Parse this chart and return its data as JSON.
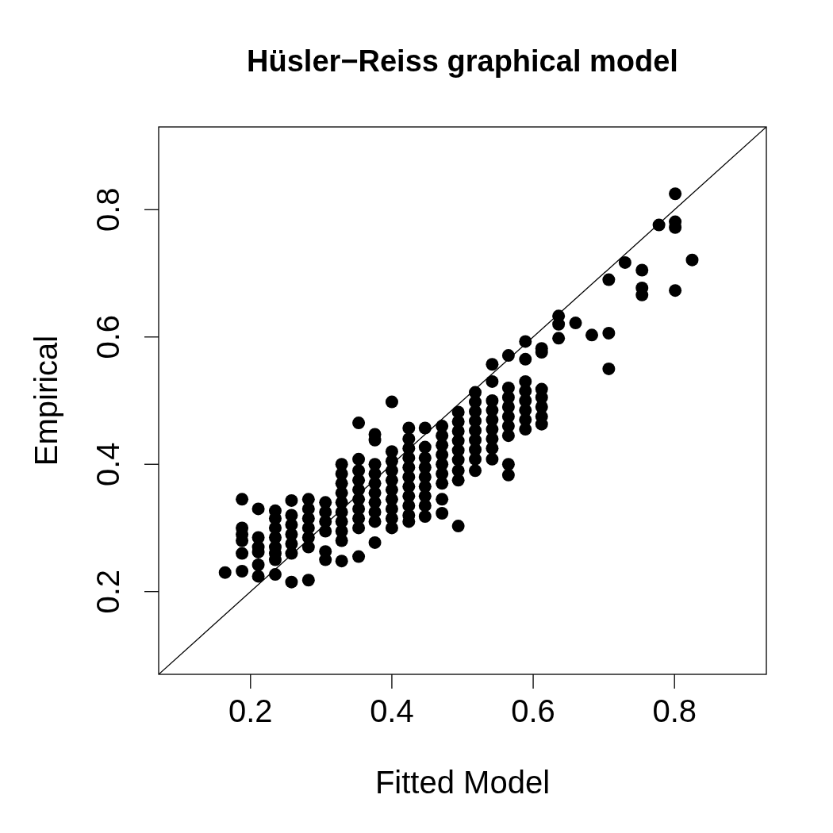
{
  "chart_data": {
    "type": "scatter",
    "title": "Hüsler−Reiss graphical model",
    "xlabel": "Fitted Model",
    "ylabel": "Empirical",
    "xlim": [
      0.07,
      0.93
    ],
    "ylim": [
      0.07,
      0.93
    ],
    "xticks": [
      0.2,
      0.4,
      0.6,
      0.8
    ],
    "yticks": [
      0.2,
      0.4,
      0.6,
      0.8
    ],
    "grid": false,
    "series": [
      {
        "color": "#000000",
        "marker": "circle",
        "x": [
          0.164,
          0.188,
          0.188,
          0.188,
          0.188,
          0.188,
          0.188,
          0.211,
          0.211,
          0.211,
          0.211,
          0.211,
          0.211,
          0.235,
          0.235,
          0.235,
          0.235,
          0.235,
          0.235,
          0.235,
          0.235,
          0.258,
          0.258,
          0.258,
          0.258,
          0.258,
          0.258,
          0.258,
          0.282,
          0.282,
          0.282,
          0.282,
          0.282,
          0.282,
          0.282,
          0.306,
          0.306,
          0.306,
          0.306,
          0.306,
          0.306,
          0.329,
          0.329,
          0.329,
          0.329,
          0.329,
          0.329,
          0.329,
          0.329,
          0.329,
          0.329,
          0.353,
          0.353,
          0.353,
          0.353,
          0.353,
          0.353,
          0.353,
          0.353,
          0.353,
          0.353,
          0.376,
          0.376,
          0.376,
          0.376,
          0.376,
          0.376,
          0.376,
          0.376,
          0.376,
          0.376,
          0.4,
          0.4,
          0.4,
          0.4,
          0.4,
          0.4,
          0.4,
          0.4,
          0.4,
          0.4,
          0.424,
          0.424,
          0.424,
          0.424,
          0.424,
          0.424,
          0.424,
          0.424,
          0.424,
          0.424,
          0.424,
          0.447,
          0.447,
          0.447,
          0.447,
          0.447,
          0.447,
          0.447,
          0.447,
          0.447,
          0.471,
          0.471,
          0.471,
          0.471,
          0.471,
          0.471,
          0.471,
          0.471,
          0.471,
          0.494,
          0.494,
          0.494,
          0.494,
          0.494,
          0.494,
          0.494,
          0.494,
          0.494,
          0.518,
          0.518,
          0.518,
          0.518,
          0.518,
          0.518,
          0.518,
          0.518,
          0.518,
          0.542,
          0.542,
          0.542,
          0.542,
          0.542,
          0.542,
          0.542,
          0.542,
          0.542,
          0.565,
          0.565,
          0.565,
          0.565,
          0.565,
          0.565,
          0.565,
          0.565,
          0.565,
          0.589,
          0.589,
          0.589,
          0.589,
          0.589,
          0.589,
          0.589,
          0.589,
          0.612,
          0.612,
          0.612,
          0.612,
          0.612,
          0.612,
          0.612,
          0.636,
          0.636,
          0.636,
          0.66,
          0.683,
          0.707,
          0.707,
          0.707,
          0.73,
          0.754,
          0.754,
          0.754,
          0.778,
          0.801,
          0.801,
          0.801,
          0.801,
          0.825
        ],
        "values": [
          0.23,
          0.345,
          0.3,
          0.29,
          0.28,
          0.26,
          0.232,
          0.33,
          0.285,
          0.27,
          0.262,
          0.242,
          0.224,
          0.327,
          0.315,
          0.3,
          0.285,
          0.27,
          0.26,
          0.25,
          0.227,
          0.343,
          0.32,
          0.305,
          0.29,
          0.275,
          0.26,
          0.215,
          0.345,
          0.33,
          0.315,
          0.3,
          0.285,
          0.27,
          0.218,
          0.34,
          0.325,
          0.31,
          0.295,
          0.263,
          0.25,
          0.4,
          0.385,
          0.37,
          0.355,
          0.34,
          0.325,
          0.31,
          0.295,
          0.28,
          0.248,
          0.465,
          0.408,
          0.39,
          0.375,
          0.36,
          0.345,
          0.33,
          0.315,
          0.3,
          0.255,
          0.447,
          0.438,
          0.4,
          0.385,
          0.37,
          0.355,
          0.34,
          0.325,
          0.31,
          0.277,
          0.498,
          0.42,
          0.405,
          0.39,
          0.375,
          0.36,
          0.345,
          0.33,
          0.315,
          0.3,
          0.457,
          0.44,
          0.425,
          0.41,
          0.395,
          0.38,
          0.365,
          0.35,
          0.335,
          0.32,
          0.31,
          0.457,
          0.427,
          0.41,
          0.395,
          0.38,
          0.365,
          0.35,
          0.335,
          0.318,
          0.46,
          0.445,
          0.43,
          0.415,
          0.4,
          0.385,
          0.37,
          0.345,
          0.323,
          0.482,
          0.467,
          0.452,
          0.437,
          0.422,
          0.407,
          0.39,
          0.375,
          0.303,
          0.513,
          0.498,
          0.483,
          0.468,
          0.453,
          0.438,
          0.423,
          0.408,
          0.39,
          0.557,
          0.53,
          0.5,
          0.485,
          0.47,
          0.455,
          0.44,
          0.425,
          0.408,
          0.571,
          0.52,
          0.505,
          0.49,
          0.475,
          0.46,
          0.445,
          0.4,
          0.383,
          0.593,
          0.565,
          0.53,
          0.515,
          0.5,
          0.485,
          0.47,
          0.455,
          0.582,
          0.576,
          0.518,
          0.505,
          0.49,
          0.475,
          0.463,
          0.633,
          0.62,
          0.598,
          0.622,
          0.603,
          0.69,
          0.606,
          0.55,
          0.717,
          0.705,
          0.677,
          0.666,
          0.776,
          0.825,
          0.781,
          0.772,
          0.673,
          0.721
        ]
      },
      {
        "type": "line",
        "color": "#000000",
        "x": [
          0.07,
          0.93
        ],
        "values": [
          0.07,
          0.93
        ],
        "line_style": "solid",
        "marker": "none"
      }
    ]
  }
}
